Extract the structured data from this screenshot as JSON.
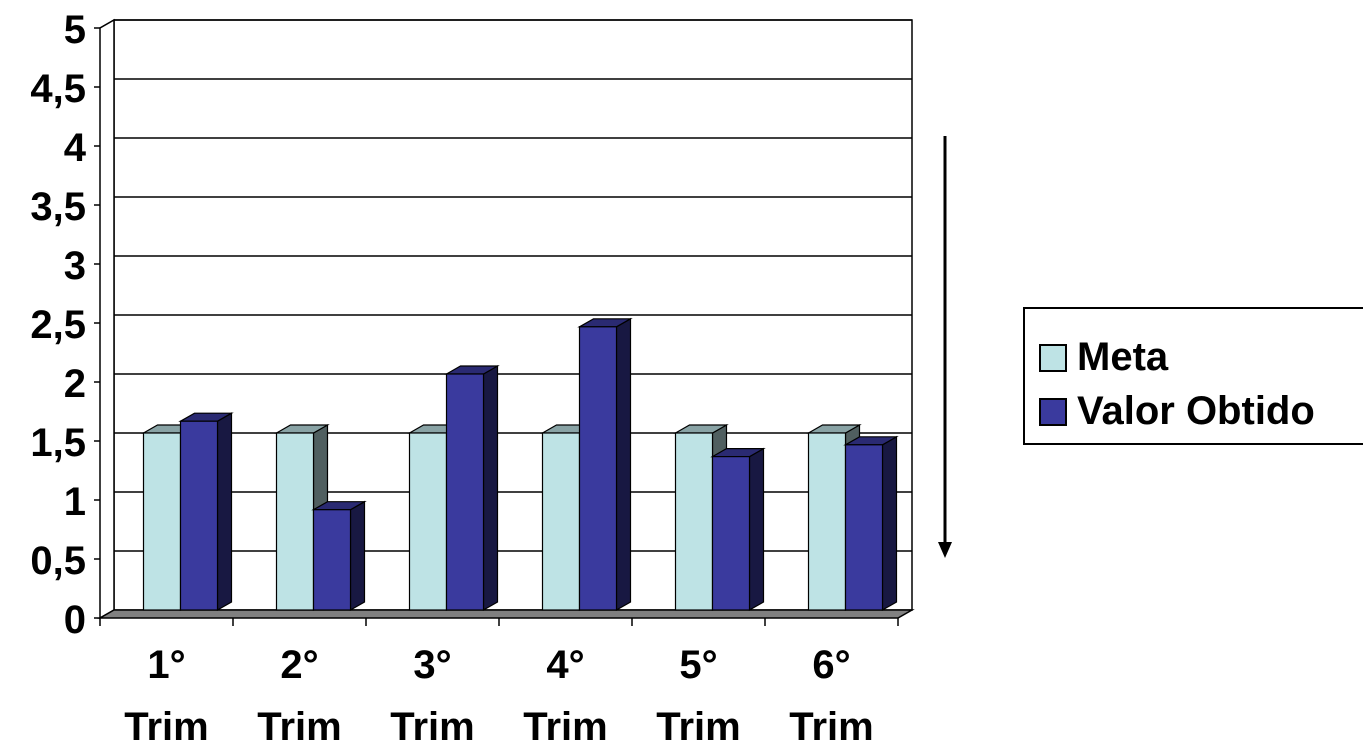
{
  "chart_data": {
    "type": "bar",
    "categories": [
      "1° Trim",
      "2° Trim",
      "3° Trim",
      "4° Trim",
      "5° Trim",
      "6° Trim"
    ],
    "series": [
      {
        "name": "Meta",
        "values": [
          1.5,
          1.5,
          1.5,
          1.5,
          1.5,
          1.5
        ],
        "color": "#BEE3E5"
      },
      {
        "name": "Valor Obtido",
        "values": [
          1.6,
          0.85,
          2.0,
          2.4,
          1.3,
          1.4
        ],
        "color": "#3A3A9E"
      }
    ],
    "yticks": [
      "0",
      "0,5",
      "1",
      "1,5",
      "2",
      "2,5",
      "3",
      "3,5",
      "4",
      "4,5",
      "5"
    ],
    "ylim": [
      0,
      5
    ],
    "grid": true,
    "three_d": true,
    "legend_position": "right",
    "title": "",
    "xlabel": "",
    "ylabel": ""
  },
  "legend": {
    "items": [
      {
        "label": "Meta"
      },
      {
        "label": "Valor Obtido"
      }
    ]
  },
  "colors": {
    "meta": "#BEE3E5",
    "valor_obtido": "#3A3A9E",
    "floor": "#808080",
    "arrow": "#000000"
  },
  "annotation": {
    "arrow_direction": "down"
  }
}
